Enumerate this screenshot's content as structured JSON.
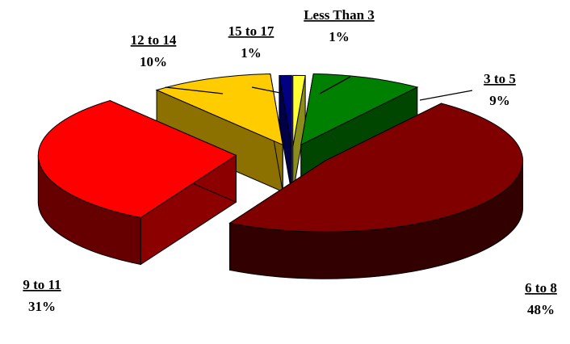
{
  "chart_data": {
    "type": "pie",
    "style": "3d-exploded",
    "title": "",
    "categories": [
      "Less Than 3",
      "3 to 5",
      "6 to 8",
      "9 to 11",
      "12 to 14",
      "15 to 17"
    ],
    "values": [
      1,
      9,
      48,
      31,
      10,
      1
    ],
    "value_labels": [
      "1%",
      "9%",
      "48%",
      "31%",
      "10%",
      "1%"
    ],
    "colors": [
      "#FFFF33",
      "#008000",
      "#800000",
      "#FF0000",
      "#FFCC00",
      "#000080"
    ],
    "legend": "none"
  }
}
